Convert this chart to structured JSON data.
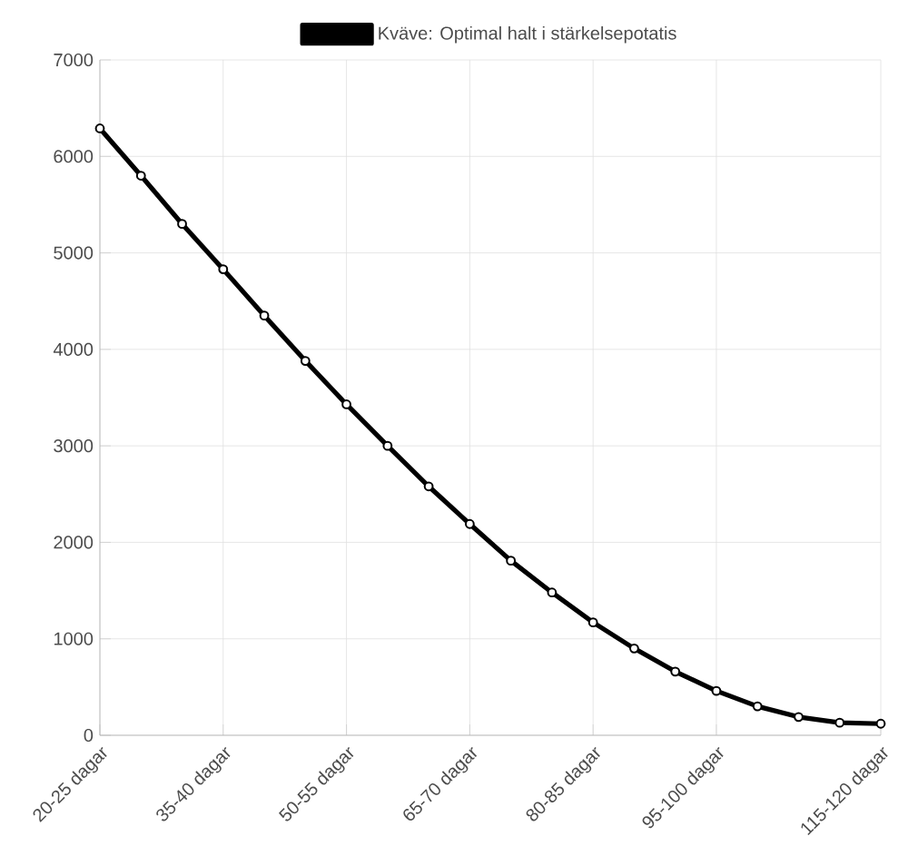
{
  "chart_data": {
    "type": "line",
    "categories": [
      "20-25 dagar",
      null,
      null,
      "35-40 dagar",
      null,
      null,
      "50-55 dagar",
      null,
      null,
      "65-70 dagar",
      null,
      null,
      "80-85 dagar",
      null,
      null,
      "95-100 dagar",
      null,
      null,
      null,
      "115-120 dagar"
    ],
    "series": [
      {
        "name": "Kväve: Optimal halt i stärkelsepotatis",
        "color": "#000000",
        "values": [
          6290,
          5800,
          5300,
          4830,
          4350,
          3880,
          3430,
          3000,
          2580,
          2190,
          1810,
          1480,
          1170,
          900,
          660,
          460,
          300,
          190,
          130,
          120
        ]
      }
    ],
    "ylim": [
      0,
      7000
    ],
    "yticks": [
      0,
      1000,
      2000,
      3000,
      4000,
      5000,
      6000,
      7000
    ],
    "grid": true,
    "legend": "top",
    "marker": "circle",
    "line_style": "solid"
  }
}
